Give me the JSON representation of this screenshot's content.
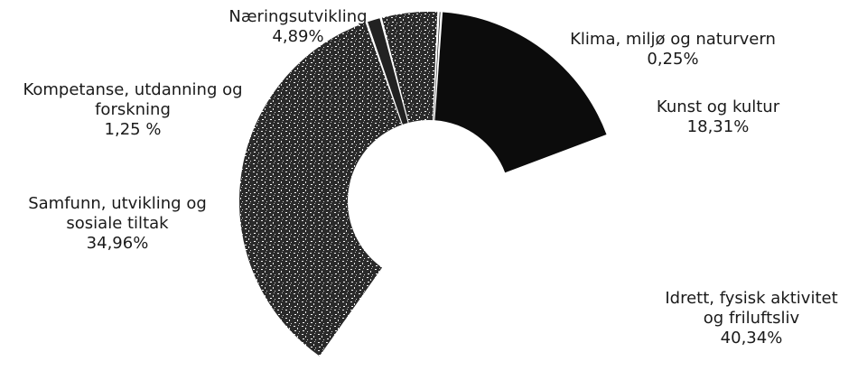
{
  "chart_data": {
    "type": "pie",
    "variant": "donut",
    "title": "",
    "slices": [
      {
        "label": [
          "Klima, miljø og naturvern"
        ],
        "value_text": "0,25%",
        "value": 0.25,
        "color": "#111111",
        "pattern": "solid"
      },
      {
        "label": [
          "Kunst og kultur"
        ],
        "value_text": "18,31%",
        "value": 18.31,
        "color": "#0c0c0c",
        "pattern": "solid"
      },
      {
        "label": [
          "Idrett, fysisk aktivitet",
          "og friluftsliv"
        ],
        "value_text": "40,34%",
        "value": 40.34,
        "color": "#ffffff",
        "pattern": "none"
      },
      {
        "label": [
          "Samfunn, utvikling og",
          "sosiale tiltak"
        ],
        "value_text": "34,96%",
        "value": 34.96,
        "color": "#333333",
        "pattern": "speckled"
      },
      {
        "label": [
          "Kompetanse, utdanning og",
          "forskning"
        ],
        "value_text": "1,25 %",
        "value": 1.25,
        "color": "#222222",
        "pattern": "solid"
      },
      {
        "label": [
          "Næringsutvikling"
        ],
        "value_text": "4,89%",
        "value": 4.89,
        "color": "#444444",
        "pattern": "speckled"
      }
    ]
  }
}
